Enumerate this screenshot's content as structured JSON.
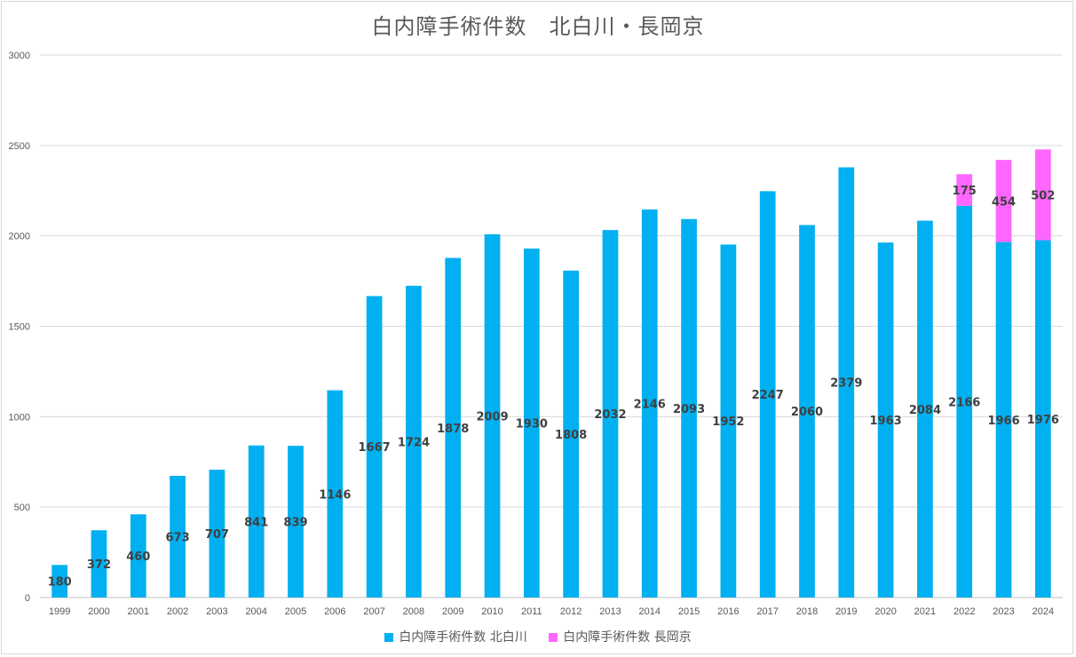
{
  "chart_data": {
    "type": "bar",
    "stacked": true,
    "title": "白内障手術件数　北白川・長岡京",
    "categories": [
      "1999",
      "2000",
      "2001",
      "2002",
      "2003",
      "2004",
      "2005",
      "2006",
      "2007",
      "2008",
      "2009",
      "2010",
      "2011",
      "2012",
      "2013",
      "2014",
      "2015",
      "2016",
      "2017",
      "2018",
      "2019",
      "2020",
      "2021",
      "2022",
      "2023",
      "2024"
    ],
    "series": [
      {
        "name": "白内障手術件数 北白川",
        "color": "#00b0f0",
        "values": [
          180,
          372,
          460,
          673,
          707,
          841,
          839,
          1146,
          1667,
          1724,
          1878,
          2009,
          1930,
          1808,
          2032,
          2146,
          2093,
          1952,
          2247,
          2060,
          2379,
          1963,
          2084,
          2166,
          1966,
          1976
        ]
      },
      {
        "name": "白内障手術件数 長岡京",
        "color": "#ff66ff",
        "values": [
          null,
          null,
          null,
          null,
          null,
          null,
          null,
          null,
          null,
          null,
          null,
          null,
          null,
          null,
          null,
          null,
          null,
          null,
          null,
          null,
          null,
          null,
          null,
          175,
          454,
          502
        ]
      }
    ],
    "ylim": [
      0,
      3000
    ],
    "yticks": [
      0,
      500,
      1000,
      1500,
      2000,
      2500,
      3000
    ],
    "grid": true,
    "legend": "bottom"
  }
}
